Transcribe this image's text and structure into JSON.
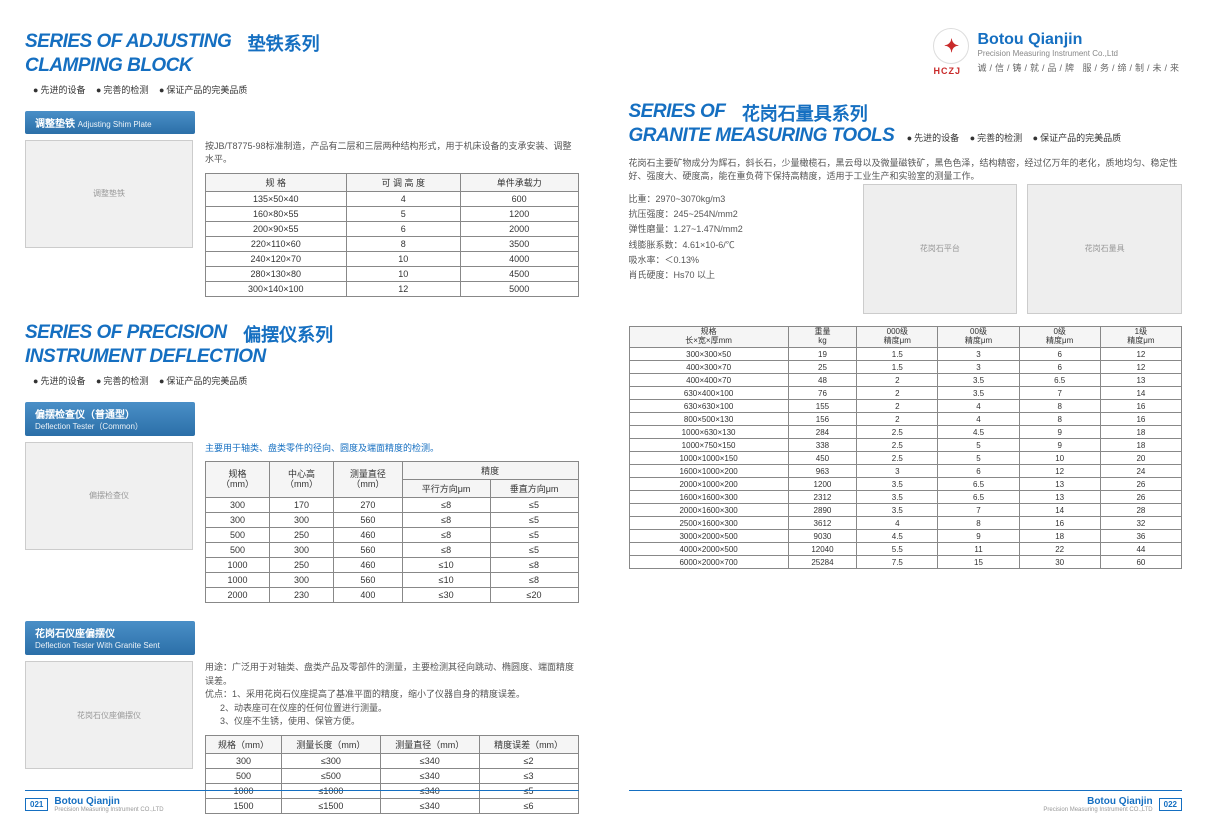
{
  "left": {
    "section1": {
      "title_en_line1": "SERIES OF ADJUSTING",
      "title_en_line2": "CLAMPING BLOCK",
      "title_cn": "垫铁系列",
      "tag1": "先进的设备",
      "tag2": "完善的检测",
      "tag3": "保证产品的完美品质",
      "subbar_cn": "调整垫铁",
      "subbar_en": "Adjusting Shim Plate",
      "intro": "按JB/T8775-98标准制造，产品有二层和三层两种结构形式，用于机床设备的支承安装、调整水平。",
      "img": "调整垫铁",
      "tbl": {
        "h1": "规 格",
        "h2": "可 调 高 度",
        "h3": "单件承载力",
        "rows": [
          [
            "135×50×40",
            "4",
            "600"
          ],
          [
            "160×80×55",
            "5",
            "1200"
          ],
          [
            "200×90×55",
            "6",
            "2000"
          ],
          [
            "220×110×60",
            "8",
            "3500"
          ],
          [
            "240×120×70",
            "10",
            "4000"
          ],
          [
            "280×130×80",
            "10",
            "4500"
          ],
          [
            "300×140×100",
            "12",
            "5000"
          ]
        ]
      }
    },
    "section2": {
      "title_en_line1": "SERIES OF PRECISION",
      "title_en_line2": "INSTRUMENT DEFLECTION",
      "title_cn": "偏摆仪系列",
      "tag1": "先进的设备",
      "tag2": "完善的检测",
      "tag3": "保证产品的完美品质",
      "subbar_cn": "偏摆检查仪（普通型）",
      "subbar_en": "Deflection Tester（Common）",
      "intro": "主要用于轴类、盘类零件的径向、圆度及端面精度的检测。",
      "img": "偏摆检查仪",
      "tbl": {
        "h1a": "规格",
        "h1b": "（mm）",
        "h2a": "中心高",
        "h2b": "（mm）",
        "h3a": "测量直径",
        "h3b": "（mm）",
        "h4": "精度",
        "h4a": "平行方向μm",
        "h4b": "垂直方向μm",
        "rows": [
          [
            "300",
            "170",
            "270",
            "≤8",
            "≤5"
          ],
          [
            "300",
            "300",
            "560",
            "≤8",
            "≤5"
          ],
          [
            "500",
            "250",
            "460",
            "≤8",
            "≤5"
          ],
          [
            "500",
            "300",
            "560",
            "≤8",
            "≤5"
          ],
          [
            "1000",
            "250",
            "460",
            "≤10",
            "≤8"
          ],
          [
            "1000",
            "300",
            "560",
            "≤10",
            "≤8"
          ],
          [
            "2000",
            "230",
            "400",
            "≤30",
            "≤20"
          ]
        ]
      }
    },
    "section3": {
      "subbar_cn": "花岗石仪座偏摆仪",
      "subbar_en": "Deflection Tester With Granite Sent",
      "use_label": "用途：",
      "use_text": "广泛用于对轴类、盘类产品及零部件的测量，主要检测其径向跳动、椭圆度、端面精度误差。",
      "adv_label": "优点：",
      "adv1": "1、采用花岗石仪座提高了基准平面的精度，缩小了仪器自身的精度误差。",
      "adv2": "2、动表座可在仪座的任何位置进行测量。",
      "adv3": "3、仪座不生锈，使用、保管方便。",
      "img": "花岗石仪座偏摆仪",
      "tbl": {
        "h1": "规格（mm）",
        "h2": "测量长度（mm）",
        "h3": "测量直径（mm）",
        "h4": "精度误差（mm）",
        "rows": [
          [
            "300",
            "≤300",
            "≤340",
            "≤2"
          ],
          [
            "500",
            "≤500",
            "≤340",
            "≤3"
          ],
          [
            "1000",
            "≤1000",
            "≤340",
            "≤5"
          ],
          [
            "1500",
            "≤1500",
            "≤340",
            "≤6"
          ]
        ]
      }
    }
  },
  "right": {
    "brand": "Botou Qianjin",
    "brand_sub": "Precision Measuring Instrument Co.,Ltd",
    "hczj": "HCZJ",
    "motto": "诚/信/铸/就/品/牌  服/务/缔/制/未/来",
    "section": {
      "title_en_line1": "SERIES OF",
      "title_en_line2": "GRANITE MEASURING TOOLS",
      "title_cn": "花岗石量具系列",
      "tag1": "先进的设备",
      "tag2": "完善的检测",
      "tag3": "保证产品的完美品质",
      "intro": "花岗石主要矿物成分为辉石，斜长石，少量橄榄石，黑云母以及微量磁铁矿，黑色色泽，结构精密，经过亿万年的老化，质地均匀、稳定性好、强度大、硬度高，能在重负荷下保持高精度，适用于工业生产和实验室的测量工作。",
      "spec1": "比重：2970~3070kg/m3",
      "spec2": "抗压强度：245~254N/mm2",
      "spec3": "弹性磨量：1.27~1.47N/mm2",
      "spec4": "线膨胀系数：4.61×10-6/℃",
      "spec5": "吸水率：＜0.13%",
      "spec6": "肖氏硬度：Hs70 以上",
      "img1": "花岗石平台",
      "img2": "花岗石量具",
      "tbl": {
        "h1a": "规格",
        "h1b": "长×宽×厚mm",
        "h2a": "重量",
        "h2b": "kg",
        "h3a": "000级",
        "h3b": "精度μm",
        "h4a": "00级",
        "h4b": "精度μm",
        "h5a": "0级",
        "h5b": "精度μm",
        "h6a": "1级",
        "h6b": "精度μm",
        "rows": [
          [
            "300×300×50",
            "19",
            "1.5",
            "3",
            "6",
            "12"
          ],
          [
            "400×300×70",
            "25",
            "1.5",
            "3",
            "6",
            "12"
          ],
          [
            "400×400×70",
            "48",
            "2",
            "3.5",
            "6.5",
            "13"
          ],
          [
            "630×400×100",
            "76",
            "2",
            "3.5",
            "7",
            "14"
          ],
          [
            "630×630×100",
            "155",
            "2",
            "4",
            "8",
            "16"
          ],
          [
            "800×500×130",
            "156",
            "2",
            "4",
            "8",
            "16"
          ],
          [
            "1000×630×130",
            "284",
            "2.5",
            "4.5",
            "9",
            "18"
          ],
          [
            "1000×750×150",
            "338",
            "2.5",
            "5",
            "9",
            "18"
          ],
          [
            "1000×1000×150",
            "450",
            "2.5",
            "5",
            "10",
            "20"
          ],
          [
            "1600×1000×200",
            "963",
            "3",
            "6",
            "12",
            "24"
          ],
          [
            "2000×1000×200",
            "1200",
            "3.5",
            "6.5",
            "13",
            "26"
          ],
          [
            "1600×1600×300",
            "2312",
            "3.5",
            "6.5",
            "13",
            "26"
          ],
          [
            "2000×1600×300",
            "2890",
            "3.5",
            "7",
            "14",
            "28"
          ],
          [
            "2500×1600×300",
            "3612",
            "4",
            "8",
            "16",
            "32"
          ],
          [
            "3000×2000×500",
            "9030",
            "4.5",
            "9",
            "18",
            "36"
          ],
          [
            "4000×2000×500",
            "12040",
            "5.5",
            "11",
            "22",
            "44"
          ],
          [
            "6000×2000×700",
            "25284",
            "7.5",
            "15",
            "30",
            "60"
          ]
        ]
      }
    }
  },
  "footer": {
    "page_left": "021",
    "page_right": "022",
    "brand": "Botou Qianjin",
    "sub": "Precision Measuring Instrument CO.,LTD"
  }
}
